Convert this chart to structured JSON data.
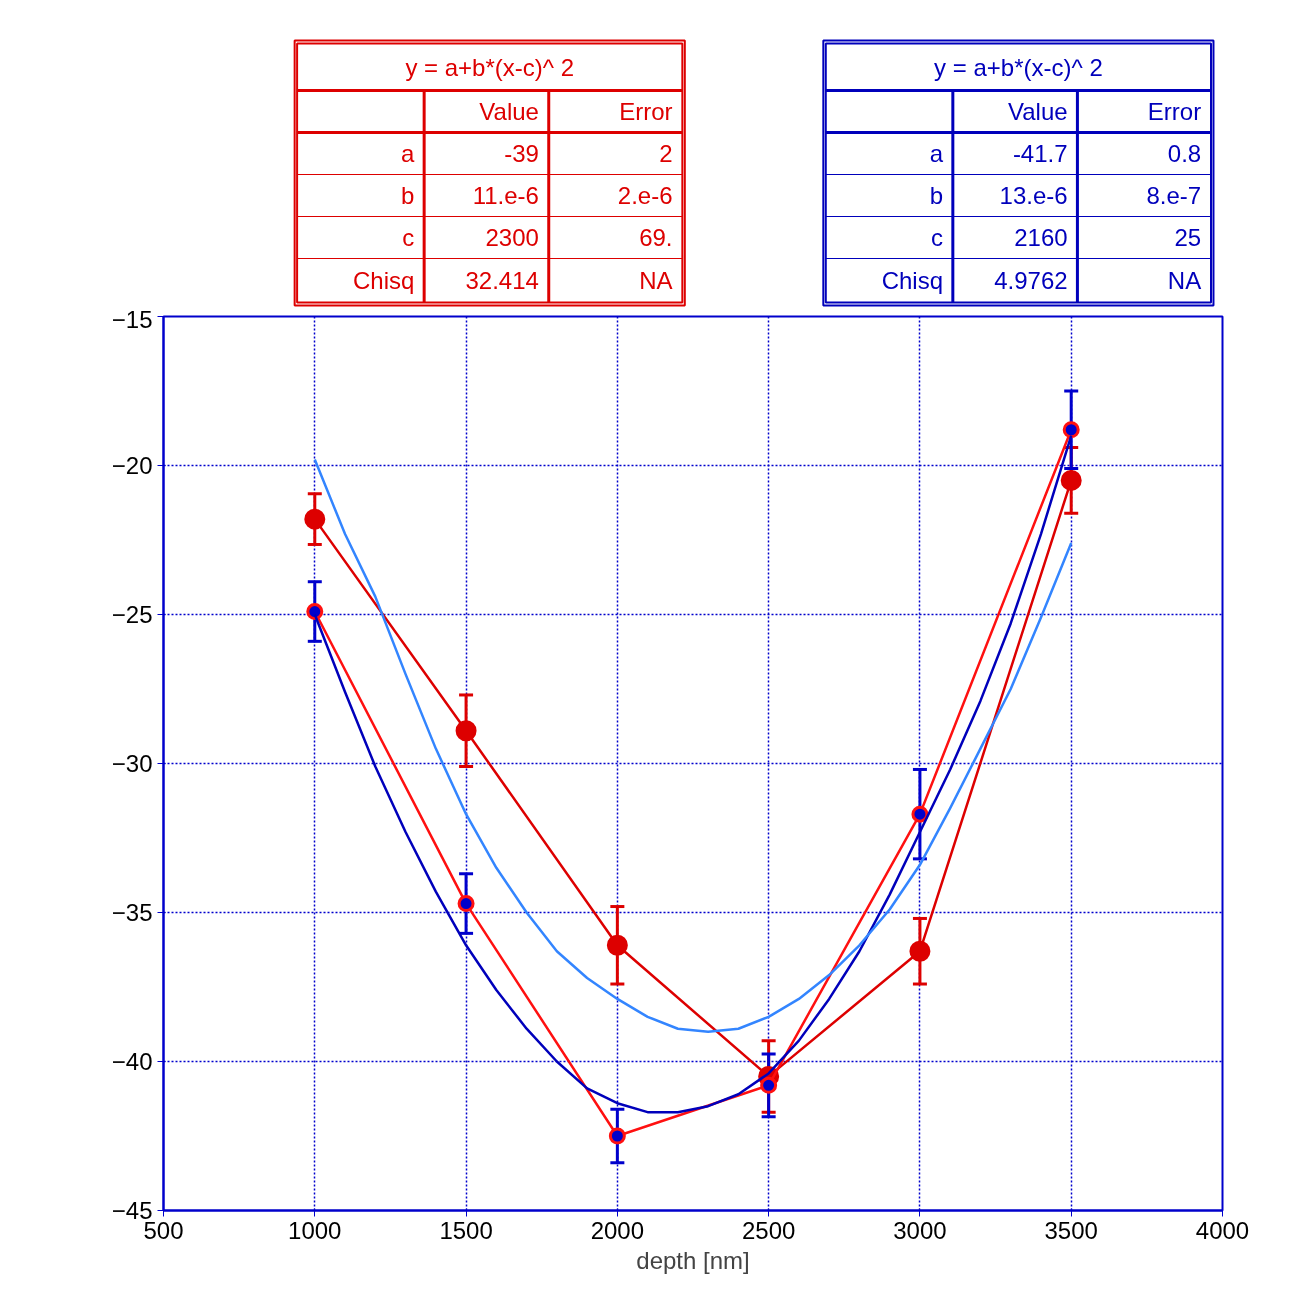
{
  "chart_data": {
    "type": "line",
    "xlabel": "depth [nm]",
    "xlim": [
      500,
      4000
    ],
    "ylim": [
      -45,
      -15
    ],
    "xticks": [
      500,
      1000,
      1500,
      2000,
      2500,
      3000,
      3500,
      4000
    ],
    "yticks": [
      -45,
      -40,
      -35,
      -30,
      -25,
      -20,
      -15
    ],
    "grid": true,
    "annotations": [
      "y = a+b*(x-c)^ 2",
      "Value",
      "Error",
      "a",
      "-39",
      "2",
      "b",
      "11.e-6",
      "2.e-6",
      "c",
      "2300",
      "69.",
      "Chisq",
      "32.414",
      "NA",
      "y = a+b*(x-c)^ 2",
      "Value",
      "Error",
      "a",
      "-41.7",
      "0.8",
      "b",
      "13.e-6",
      "8.e-7",
      "c",
      "2160",
      "25",
      "Chisq",
      "4.9762",
      "NA"
    ],
    "series": [
      {
        "color": "#dd0000",
        "marker": "circle",
        "x": [
          1000,
          1500,
          2000,
          2500,
          3000,
          3500
        ],
        "values": [
          -21.8,
          -28.9,
          -36.1,
          -40.5,
          -36.3,
          -20.5
        ],
        "errors": [
          0.85,
          1.2,
          1.3,
          1.2,
          1.1,
          1.1
        ]
      },
      {
        "color": "#ff1010",
        "marker": "none",
        "x": [
          1000,
          1500,
          2000,
          2500,
          3000,
          3500
        ],
        "values": [
          -24.9,
          -34.7,
          -42.5,
          -40.8,
          -31.7,
          -18.8
        ]
      },
      {
        "type": "scatter",
        "color": "#0000cc",
        "marker": "circle",
        "x": [
          1000,
          1500,
          2000,
          2500,
          3000,
          3500
        ],
        "values": [
          -24.9,
          -34.7,
          -42.5,
          -40.8,
          -31.7,
          -18.8
        ],
        "errors": [
          1.0,
          1.0,
          0.9,
          1.05,
          1.5,
          1.3
        ]
      },
      {
        "color": "#0000bb",
        "marker": "none",
        "x": [
          1000,
          1100,
          1200,
          1300,
          1400,
          1500,
          1600,
          1700,
          1800,
          1900,
          2000,
          2100,
          2200,
          2300,
          2400,
          2500,
          2600,
          2700,
          2800,
          2900,
          3000,
          3100,
          3200,
          3300,
          3400,
          3500
        ],
        "values": [
          -25.0,
          -27.6,
          -30.1,
          -32.3,
          -34.3,
          -36.1,
          -37.6,
          -38.9,
          -40.0,
          -40.9,
          -41.4,
          -41.7,
          -41.7,
          -41.5,
          -41.1,
          -40.4,
          -39.3,
          -37.9,
          -36.3,
          -34.4,
          -32.3,
          -30.2,
          -27.9,
          -25.3,
          -22.3,
          -19.0
        ]
      },
      {
        "color": "#3385ff",
        "marker": "none",
        "x": [
          1000,
          1100,
          1200,
          1300,
          1400,
          1500,
          1600,
          1700,
          1800,
          1900,
          2000,
          2100,
          2200,
          2300,
          2400,
          2500,
          2600,
          2700,
          2800,
          2900,
          3000,
          3100,
          3200,
          3300,
          3400,
          3500
        ],
        "values": [
          -19.8,
          -22.3,
          -24.4,
          -27.0,
          -29.5,
          -31.7,
          -33.5,
          -35.0,
          -36.3,
          -37.2,
          -37.9,
          -38.5,
          -38.9,
          -39.0,
          -38.9,
          -38.5,
          -37.9,
          -37.1,
          -36.1,
          -34.9,
          -33.4,
          -31.5,
          -29.5,
          -27.5,
          -25.1,
          -22.6
        ]
      }
    ]
  }
}
